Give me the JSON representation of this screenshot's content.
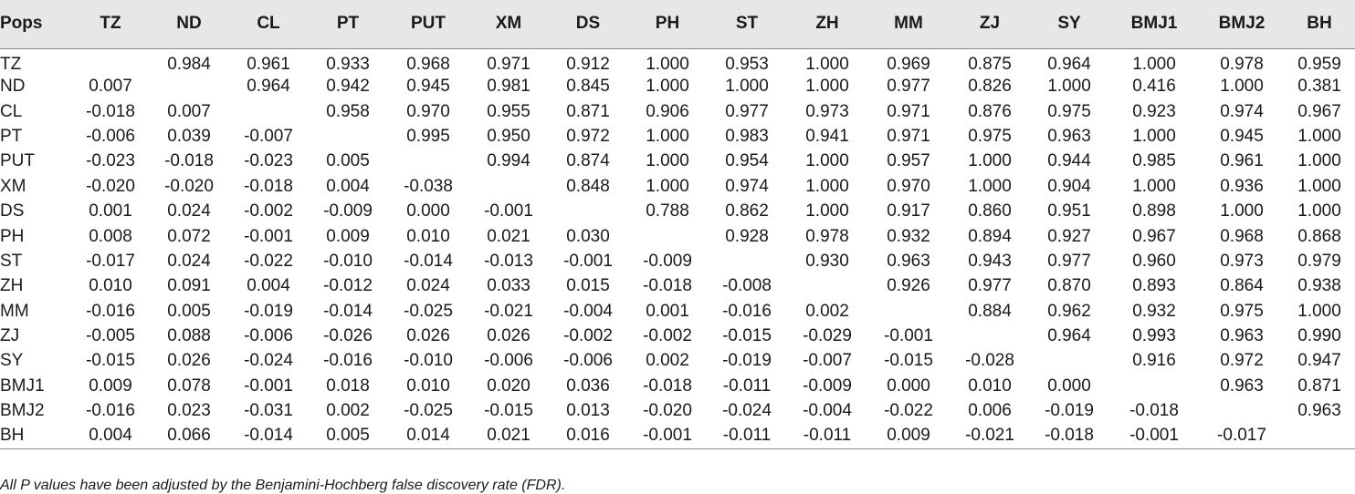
{
  "table": {
    "columns": [
      "Pops",
      "TZ",
      "ND",
      "CL",
      "PT",
      "PUT",
      "XM",
      "DS",
      "PH",
      "ST",
      "ZH",
      "MM",
      "ZJ",
      "SY",
      "BMJ1",
      "BMJ2",
      "BH"
    ],
    "rows": [
      [
        "TZ",
        "",
        "0.984",
        "0.961",
        "0.933",
        "0.968",
        "0.971",
        "0.912",
        "1.000",
        "0.953",
        "1.000",
        "0.969",
        "0.875",
        "0.964",
        "1.000",
        "0.978",
        "0.959"
      ],
      [
        "ND",
        "0.007",
        "",
        "0.964",
        "0.942",
        "0.945",
        "0.981",
        "0.845",
        "1.000",
        "1.000",
        "1.000",
        "0.977",
        "0.826",
        "1.000",
        "0.416",
        "1.000",
        "0.381"
      ],
      [
        "CL",
        "-0.018",
        "0.007",
        "",
        "0.958",
        "0.970",
        "0.955",
        "0.871",
        "0.906",
        "0.977",
        "0.973",
        "0.971",
        "0.876",
        "0.975",
        "0.923",
        "0.974",
        "0.967"
      ],
      [
        "PT",
        "-0.006",
        "0.039",
        "-0.007",
        "",
        "0.995",
        "0.950",
        "0.972",
        "1.000",
        "0.983",
        "0.941",
        "0.971",
        "0.975",
        "0.963",
        "1.000",
        "0.945",
        "1.000"
      ],
      [
        "PUT",
        "-0.023",
        "-0.018",
        "-0.023",
        "0.005",
        "",
        "0.994",
        "0.874",
        "1.000",
        "0.954",
        "1.000",
        "0.957",
        "1.000",
        "0.944",
        "0.985",
        "0.961",
        "1.000"
      ],
      [
        "XM",
        "-0.020",
        "-0.020",
        "-0.018",
        "0.004",
        "-0.038",
        "",
        "0.848",
        "1.000",
        "0.974",
        "1.000",
        "0.970",
        "1.000",
        "0.904",
        "1.000",
        "0.936",
        "1.000"
      ],
      [
        "DS",
        "0.001",
        "0.024",
        "-0.002",
        "-0.009",
        "0.000",
        "-0.001",
        "",
        "0.788",
        "0.862",
        "1.000",
        "0.917",
        "0.860",
        "0.951",
        "0.898",
        "1.000",
        "1.000"
      ],
      [
        "PH",
        "0.008",
        "0.072",
        "-0.001",
        "0.009",
        "0.010",
        "0.021",
        "0.030",
        "",
        "0.928",
        "0.978",
        "0.932",
        "0.894",
        "0.927",
        "0.967",
        "0.968",
        "0.868"
      ],
      [
        "ST",
        "-0.017",
        "0.024",
        "-0.022",
        "-0.010",
        "-0.014",
        "-0.013",
        "-0.001",
        "-0.009",
        "",
        "0.930",
        "0.963",
        "0.943",
        "0.977",
        "0.960",
        "0.973",
        "0.979"
      ],
      [
        "ZH",
        "0.010",
        "0.091",
        "0.004",
        "-0.012",
        "0.024",
        "0.033",
        "0.015",
        "-0.018",
        "-0.008",
        "",
        "0.926",
        "0.977",
        "0.870",
        "0.893",
        "0.864",
        "0.938"
      ],
      [
        "MM",
        "-0.016",
        "0.005",
        "-0.019",
        "-0.014",
        "-0.025",
        "-0.021",
        "-0.004",
        "0.001",
        "-0.016",
        "0.002",
        "",
        "0.884",
        "0.962",
        "0.932",
        "0.975",
        "1.000"
      ],
      [
        "ZJ",
        "-0.005",
        "0.088",
        "-0.006",
        "-0.026",
        "0.026",
        "0.026",
        "-0.002",
        "-0.002",
        "-0.015",
        "-0.029",
        "-0.001",
        "",
        "0.964",
        "0.993",
        "0.963",
        "0.990"
      ],
      [
        "SY",
        "-0.015",
        "0.026",
        "-0.024",
        "-0.016",
        "-0.010",
        "-0.006",
        "-0.006",
        "0.002",
        "-0.019",
        "-0.007",
        "-0.015",
        "-0.028",
        "",
        "0.916",
        "0.972",
        "0.947"
      ],
      [
        "BMJ1",
        "0.009",
        "0.078",
        "-0.001",
        "0.018",
        "0.010",
        "0.020",
        "0.036",
        "-0.018",
        "-0.011",
        "-0.009",
        "0.000",
        "0.010",
        "0.000",
        "",
        "0.963",
        "0.871"
      ],
      [
        "BMJ2",
        "-0.016",
        "0.023",
        "-0.031",
        "0.002",
        "-0.025",
        "-0.015",
        "0.013",
        "-0.020",
        "-0.024",
        "-0.004",
        "-0.022",
        "0.006",
        "-0.019",
        "-0.018",
        "",
        "0.963"
      ],
      [
        "BH",
        "0.004",
        "0.066",
        "-0.014",
        "0.005",
        "0.014",
        "0.021",
        "0.016",
        "-0.001",
        "-0.011",
        "-0.011",
        "0.009",
        "-0.021",
        "-0.018",
        "-0.001",
        "-0.017",
        ""
      ]
    ]
  },
  "footnote": "All P values have been adjusted by the Benjamini-Hochberg false discovery rate (FDR).",
  "colors": {
    "header_background": "#e7e7e7",
    "rule": "#8a8a8a",
    "text": "#1a1a1a"
  }
}
